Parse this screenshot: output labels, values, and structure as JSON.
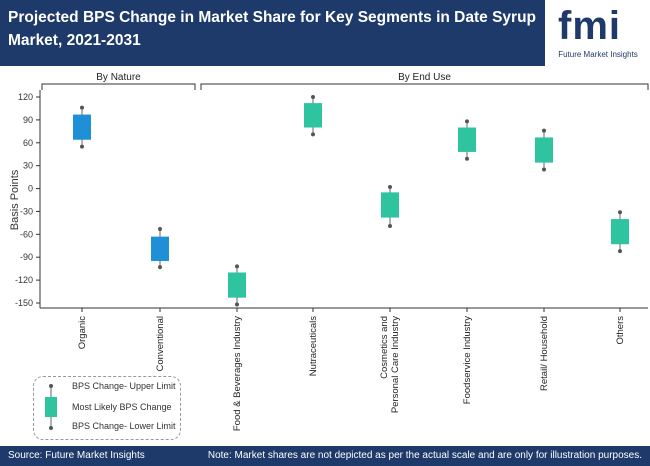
{
  "header": {
    "title": "Projected BPS Change in Market Share for Key Segments in Date Syrup Market, 2021-2031",
    "logo_letters": "fmi",
    "logo_caption": "Future Market Insights"
  },
  "footer": {
    "source": "Source: Future Market Insights",
    "note": "Note: Market shares are not depicted as per the actual scale and are only for illustration purposes."
  },
  "legend": {
    "upper": "BPS Change- Upper Limit",
    "likely": "Most Likely BPS Change",
    "lower": "BPS Change- Lower Limit"
  },
  "colors": {
    "nature": "#1f8fd6",
    "end_use": "#2ec4a0",
    "whisker": "#666666"
  },
  "chart_data": {
    "type": "box",
    "title": "",
    "ylabel": "Basis Points",
    "ylim": [
      -150,
      120
    ],
    "yticks": [
      120,
      90,
      60,
      30,
      0,
      -30,
      -60,
      -90,
      -120,
      -150
    ],
    "groups": [
      {
        "label": "By Nature",
        "categories": [
          "Organic",
          "Conventional"
        ]
      },
      {
        "label": "By End Use",
        "categories": [
          "Food & Beverages Industry",
          "Nutraceuticals",
          "Cosmetics and Personal Care Industry",
          "Foodservice Industry",
          "Retail/ Household",
          "Others"
        ]
      }
    ],
    "series": [
      {
        "category": "Organic",
        "group": "By Nature",
        "lower": 55,
        "box_low": 64,
        "box_high": 97,
        "upper": 106
      },
      {
        "category": "Conventional",
        "group": "By Nature",
        "lower": -103,
        "box_low": -95,
        "box_high": -63,
        "upper": -53
      },
      {
        "category": "Food & Beverages Industry",
        "group": "By End Use",
        "lower": -152,
        "box_low": -143,
        "box_high": -110,
        "upper": -102
      },
      {
        "category": "Nutraceuticals",
        "group": "By End Use",
        "lower": 71,
        "box_low": 80,
        "box_high": 112,
        "upper": 120
      },
      {
        "category": "Cosmetics and Personal Care Industry",
        "group": "By End Use",
        "lower": -49,
        "box_low": -38,
        "box_high": -5,
        "upper": 2
      },
      {
        "category": "Foodservice Industry",
        "group": "By End Use",
        "lower": 39,
        "box_low": 48,
        "box_high": 80,
        "upper": 88
      },
      {
        "category": "Retail/ Household",
        "group": "By End Use",
        "lower": 25,
        "box_low": 34,
        "box_high": 67,
        "upper": 76
      },
      {
        "category": "Others",
        "group": "By End Use",
        "lower": -82,
        "box_low": -73,
        "box_high": -40,
        "upper": -31
      }
    ]
  }
}
